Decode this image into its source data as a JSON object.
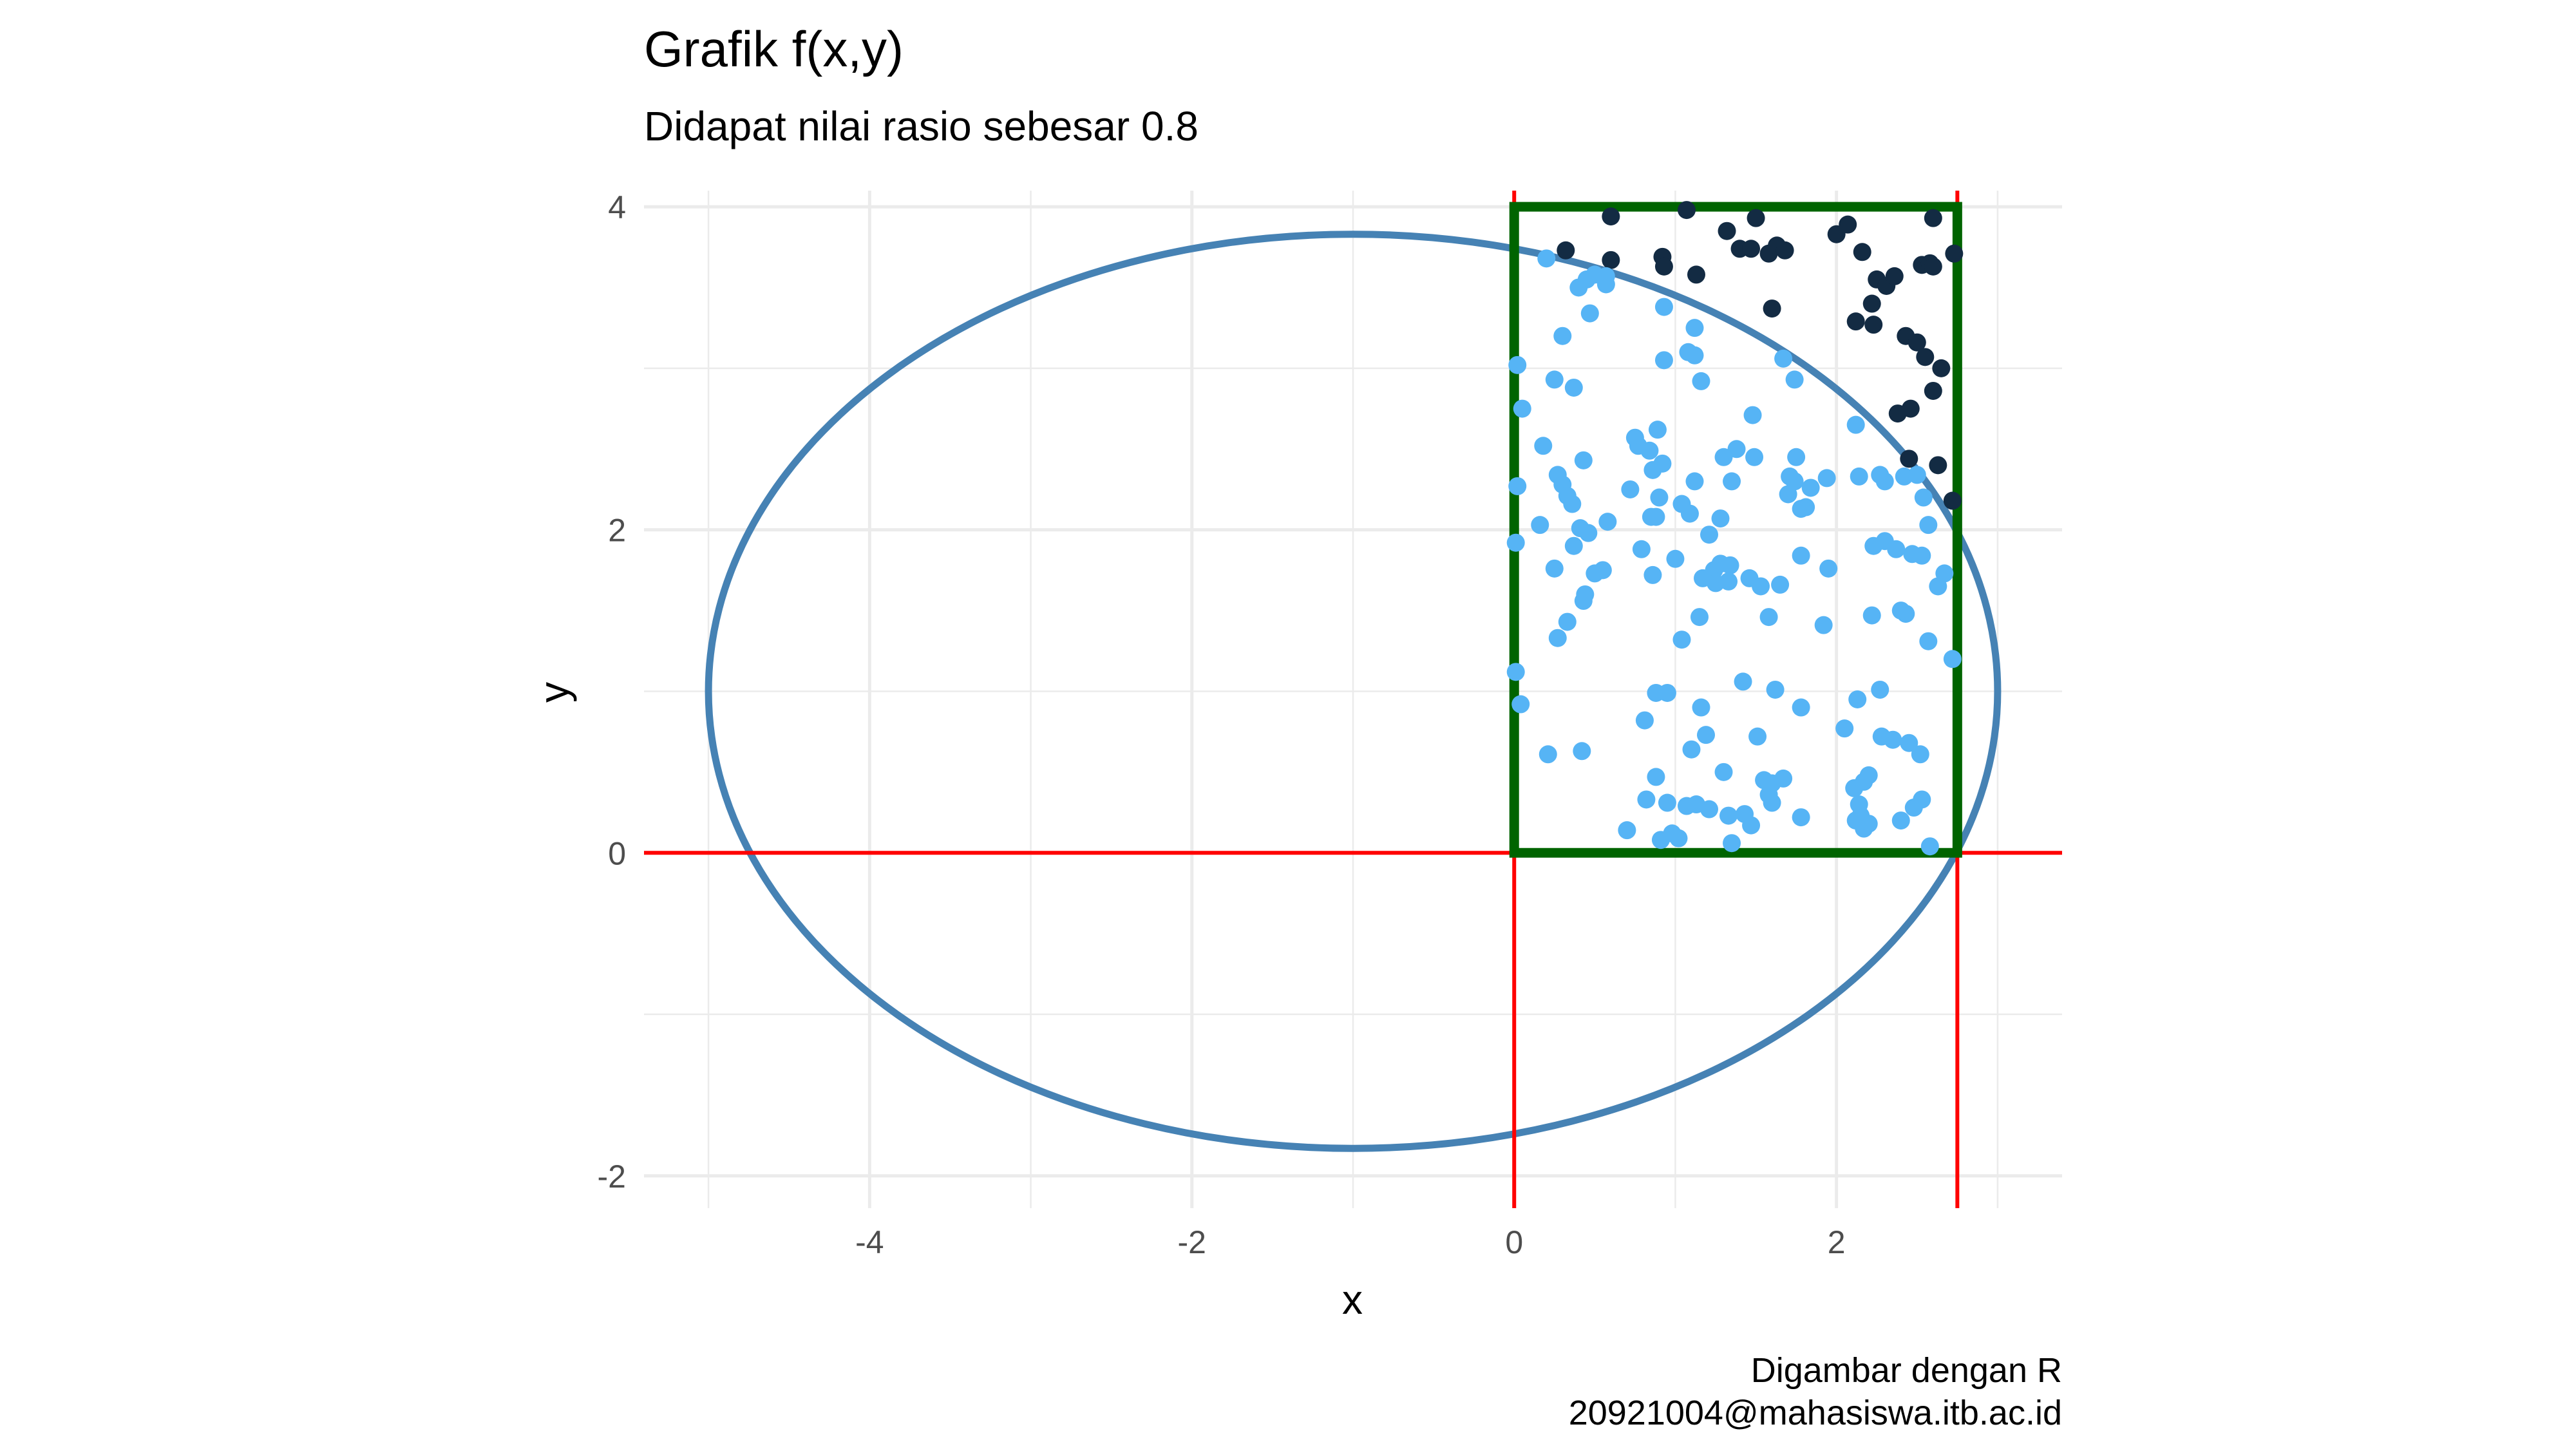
{
  "chart_data": {
    "type": "scatter",
    "title": "Grafik f(x,y)",
    "subtitle": "Didapat nilai rasio sebesar 0.8",
    "xlabel": "x",
    "ylabel": "y",
    "xlim": [
      -5.4,
      3.4
    ],
    "ylim": [
      -2.2,
      4.1
    ],
    "x_ticks": [
      -4,
      -2,
      0,
      2
    ],
    "y_ticks": [
      -2,
      0,
      2,
      4
    ],
    "grid": true,
    "caption": [
      "Digambar dengan R",
      "20921004@mahasiswa.itb.ac.id"
    ],
    "ellipse": {
      "cx": -1,
      "cy": 1,
      "rx": 4,
      "ry": 2.83,
      "color": "#4682B4"
    },
    "reference_lines": {
      "h": [
        0
      ],
      "v": [
        0,
        2.75
      ],
      "color": "#FF0000"
    },
    "rectangle": {
      "x0": 0,
      "x1": 2.75,
      "y0": 0,
      "y1": 4,
      "color": "#006400"
    },
    "colors": {
      "inside": "#56B4F5",
      "outside": "#132B43"
    },
    "series": [
      {
        "values": "outside",
        "points": [
          [
            0.32,
            3.73
          ],
          [
            0.6,
            3.94
          ],
          [
            0.6,
            3.67
          ],
          [
            0.92,
            3.69
          ],
          [
            0.93,
            3.63
          ],
          [
            1.07,
            3.98
          ],
          [
            1.13,
            3.58
          ],
          [
            1.32,
            3.85
          ],
          [
            1.4,
            3.74
          ],
          [
            1.47,
            3.74
          ],
          [
            1.5,
            3.93
          ],
          [
            1.58,
            3.71
          ],
          [
            1.63,
            3.76
          ],
          [
            1.6,
            3.37
          ],
          [
            1.68,
            3.73
          ],
          [
            2.0,
            3.83
          ],
          [
            2.07,
            3.89
          ],
          [
            2.16,
            3.72
          ],
          [
            2.25,
            3.55
          ],
          [
            2.31,
            3.51
          ],
          [
            2.36,
            3.57
          ],
          [
            2.22,
            3.4
          ],
          [
            2.12,
            3.29
          ],
          [
            2.23,
            3.27
          ],
          [
            2.43,
            3.2
          ],
          [
            2.5,
            3.16
          ],
          [
            2.53,
            3.64
          ],
          [
            2.58,
            3.65
          ],
          [
            2.6,
            3.63
          ],
          [
            2.6,
            3.93
          ],
          [
            2.73,
            3.71
          ],
          [
            2.55,
            3.07
          ],
          [
            2.65,
            3.0
          ],
          [
            2.6,
            2.86
          ],
          [
            2.38,
            2.72
          ],
          [
            2.46,
            2.75
          ],
          [
            2.45,
            2.44
          ],
          [
            2.63,
            2.4
          ],
          [
            2.72,
            2.18
          ]
        ]
      },
      {
        "values": "inside",
        "points": [
          [
            0.2,
            3.68
          ],
          [
            0.4,
            3.5
          ],
          [
            0.45,
            3.55
          ],
          [
            0.5,
            3.58
          ],
          [
            0.57,
            3.57
          ],
          [
            0.57,
            3.52
          ],
          [
            0.47,
            3.34
          ],
          [
            0.93,
            3.38
          ],
          [
            0.3,
            3.2
          ],
          [
            1.12,
            3.25
          ],
          [
            1.08,
            3.1
          ],
          [
            1.12,
            3.08
          ],
          [
            0.93,
            3.05
          ],
          [
            1.67,
            3.06
          ],
          [
            1.74,
            2.93
          ],
          [
            0.02,
            3.02
          ],
          [
            0.25,
            2.93
          ],
          [
            0.37,
            2.88
          ],
          [
            1.16,
            2.92
          ],
          [
            0.05,
            2.75
          ],
          [
            1.48,
            2.71
          ],
          [
            2.12,
            2.65
          ],
          [
            0.18,
            2.52
          ],
          [
            0.75,
            2.57
          ],
          [
            0.77,
            2.52
          ],
          [
            0.89,
            2.62
          ],
          [
            0.84,
            2.49
          ],
          [
            1.38,
            2.5
          ],
          [
            1.75,
            2.45
          ],
          [
            1.94,
            2.32
          ],
          [
            0.43,
            2.43
          ],
          [
            0.86,
            2.37
          ],
          [
            0.92,
            2.41
          ],
          [
            1.12,
            2.3
          ],
          [
            1.3,
            2.45
          ],
          [
            1.49,
            2.45
          ],
          [
            1.71,
            2.33
          ],
          [
            1.74,
            2.3
          ],
          [
            1.84,
            2.26
          ],
          [
            2.14,
            2.33
          ],
          [
            2.27,
            2.34
          ],
          [
            2.3,
            2.3
          ],
          [
            2.42,
            2.33
          ],
          [
            2.5,
            2.34
          ],
          [
            0.02,
            2.27
          ],
          [
            0.27,
            2.34
          ],
          [
            0.3,
            2.28
          ],
          [
            0.33,
            2.21
          ],
          [
            0.36,
            2.16
          ],
          [
            0.72,
            2.25
          ],
          [
            0.9,
            2.2
          ],
          [
            1.04,
            2.16
          ],
          [
            1.09,
            2.1
          ],
          [
            1.28,
            2.07
          ],
          [
            1.35,
            2.3
          ],
          [
            1.7,
            2.22
          ],
          [
            1.81,
            2.14
          ],
          [
            1.78,
            2.13
          ],
          [
            2.54,
            2.2
          ],
          [
            2.57,
            2.03
          ],
          [
            0.58,
            2.05
          ],
          [
            0.88,
            2.08
          ],
          [
            0.16,
            2.03
          ],
          [
            0.41,
            2.01
          ],
          [
            0.85,
            2.08
          ],
          [
            0.01,
            1.92
          ],
          [
            0.37,
            1.9
          ],
          [
            0.46,
            1.98
          ],
          [
            1.21,
            1.97
          ],
          [
            1.78,
            1.84
          ],
          [
            2.23,
            1.9
          ],
          [
            2.3,
            1.93
          ],
          [
            2.37,
            1.88
          ],
          [
            2.47,
            1.85
          ],
          [
            2.53,
            1.84
          ],
          [
            2.67,
            1.73
          ],
          [
            2.63,
            1.65
          ],
          [
            0.79,
            1.88
          ],
          [
            1.0,
            1.82
          ],
          [
            0.25,
            1.76
          ],
          [
            0.5,
            1.73
          ],
          [
            0.55,
            1.75
          ],
          [
            0.86,
            1.72
          ],
          [
            1.24,
            1.75
          ],
          [
            1.25,
            1.67
          ],
          [
            1.28,
            1.79
          ],
          [
            1.34,
            1.78
          ],
          [
            1.17,
            1.7
          ],
          [
            1.46,
            1.7
          ],
          [
            1.65,
            1.66
          ],
          [
            1.95,
            1.76
          ],
          [
            1.53,
            1.65
          ],
          [
            1.33,
            1.68
          ],
          [
            0.43,
            1.56
          ],
          [
            0.44,
            1.6
          ],
          [
            0.33,
            1.43
          ],
          [
            0.27,
            1.33
          ],
          [
            1.15,
            1.46
          ],
          [
            1.58,
            1.46
          ],
          [
            1.92,
            1.41
          ],
          [
            2.22,
            1.47
          ],
          [
            2.4,
            1.5
          ],
          [
            2.43,
            1.48
          ],
          [
            2.57,
            1.31
          ],
          [
            1.04,
            1.32
          ],
          [
            2.72,
            1.2
          ],
          [
            0.01,
            1.12
          ],
          [
            0.04,
            0.92
          ],
          [
            0.81,
            0.82
          ],
          [
            0.88,
            0.99
          ],
          [
            0.95,
            0.99
          ],
          [
            1.42,
            1.06
          ],
          [
            1.62,
            1.01
          ],
          [
            1.78,
            0.9
          ],
          [
            2.13,
            0.95
          ],
          [
            2.27,
            1.01
          ],
          [
            1.16,
            0.9
          ],
          [
            2.05,
            0.77
          ],
          [
            2.28,
            0.72
          ],
          [
            2.35,
            0.7
          ],
          [
            2.45,
            0.68
          ],
          [
            0.42,
            0.63
          ],
          [
            1.1,
            0.64
          ],
          [
            1.19,
            0.73
          ],
          [
            1.51,
            0.72
          ],
          [
            2.52,
            0.61
          ],
          [
            0.21,
            0.61
          ],
          [
            0.88,
            0.47
          ],
          [
            1.3,
            0.5
          ],
          [
            1.55,
            0.45
          ],
          [
            1.6,
            0.43
          ],
          [
            1.67,
            0.46
          ],
          [
            2.17,
            0.44
          ],
          [
            2.2,
            0.48
          ],
          [
            1.58,
            0.36
          ],
          [
            2.11,
            0.4
          ],
          [
            2.14,
            0.3
          ],
          [
            2.12,
            0.2
          ],
          [
            2.15,
            0.23
          ],
          [
            2.17,
            0.15
          ],
          [
            2.48,
            0.28
          ],
          [
            2.53,
            0.33
          ],
          [
            2.4,
            0.2
          ],
          [
            1.6,
            0.31
          ],
          [
            0.82,
            0.33
          ],
          [
            0.95,
            0.31
          ],
          [
            1.07,
            0.29
          ],
          [
            1.13,
            0.3
          ],
          [
            1.21,
            0.27
          ],
          [
            1.33,
            0.23
          ],
          [
            1.43,
            0.24
          ],
          [
            1.78,
            0.22
          ],
          [
            0.7,
            0.14
          ],
          [
            0.91,
            0.08
          ],
          [
            0.98,
            0.12
          ],
          [
            1.02,
            0.09
          ],
          [
            1.35,
            0.06
          ],
          [
            2.58,
            0.04
          ],
          [
            1.47,
            0.17
          ],
          [
            2.2,
            0.18
          ]
        ]
      }
    ]
  }
}
